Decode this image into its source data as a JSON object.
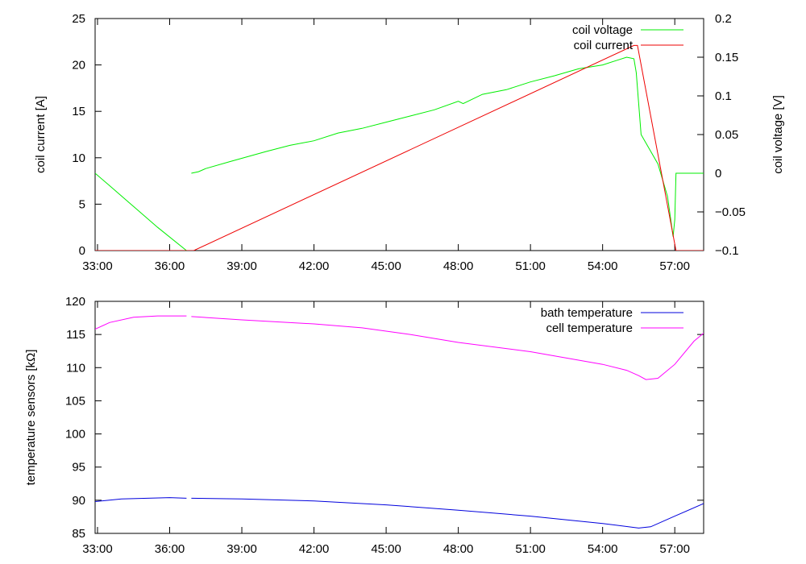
{
  "chart_data": [
    {
      "type": "line",
      "x_tick_labels": [
        "33:00",
        "36:00",
        "39:00",
        "42:00",
        "45:00",
        "48:00",
        "51:00",
        "54:00",
        "57:00"
      ],
      "x_tick_minutes": [
        33,
        36,
        39,
        42,
        45,
        48,
        51,
        54,
        57
      ],
      "xlim_minutes": [
        32.9,
        58.2
      ],
      "ylabel": "coil current [A]",
      "ylim": [
        0,
        25
      ],
      "y_ticks": [
        0,
        5,
        10,
        15,
        20,
        25
      ],
      "y2label": "coil voltage [V]",
      "y2lim": [
        -0.1,
        0.2
      ],
      "y2_ticks": [
        -0.1,
        -0.05,
        0,
        0.05,
        0.1,
        0.15,
        0.2
      ],
      "y2_tick_labels": [
        "-0.1",
        "-0.05",
        "0",
        "0.05",
        "0.1",
        "0.15",
        "0.2"
      ],
      "legend_position": "top-right",
      "series": [
        {
          "name": "coil voltage",
          "color": "#00ee00",
          "axis": "y2",
          "segments": [
            [
              [
                32.9,
                0.0
              ],
              [
                33.5,
                -0.016
              ],
              [
                34.5,
                -0.043
              ],
              [
                35.5,
                -0.07
              ],
              [
                36.7,
                -0.1
              ]
            ],
            [
              [
                36.9,
                0.0
              ],
              [
                37.2,
                0.002
              ],
              [
                37.5,
                0.006
              ],
              [
                38.5,
                0.015
              ],
              [
                40.0,
                0.028
              ],
              [
                41.0,
                0.036
              ],
              [
                42.0,
                0.042
              ],
              [
                43.0,
                0.052
              ],
              [
                44.0,
                0.058
              ],
              [
                45.0,
                0.066
              ],
              [
                46.0,
                0.074
              ],
              [
                47.0,
                0.082
              ],
              [
                48.0,
                0.093
              ],
              [
                48.2,
                0.09
              ],
              [
                49.0,
                0.102
              ],
              [
                50.0,
                0.108
              ],
              [
                51.0,
                0.118
              ],
              [
                52.0,
                0.126
              ],
              [
                53.0,
                0.135
              ],
              [
                54.0,
                0.14
              ],
              [
                54.6,
                0.146
              ],
              [
                55.0,
                0.15
              ],
              [
                55.3,
                0.148
              ],
              [
                55.4,
                0.13
              ],
              [
                55.6,
                0.05
              ],
              [
                56.3,
                0.012
              ],
              [
                56.7,
                -0.03
              ],
              [
                56.93,
                -0.082
              ],
              [
                57.0,
                -0.06
              ],
              [
                57.05,
                0.0
              ],
              [
                58.2,
                0.0
              ]
            ]
          ]
        },
        {
          "name": "coil current",
          "color": "#ee0000",
          "axis": "y",
          "segments": [
            [
              [
                32.9,
                0.0
              ],
              [
                37.0,
                0.0
              ],
              [
                55.3,
                22.1
              ],
              [
                55.45,
                22.1
              ],
              [
                57.05,
                0.0
              ],
              [
                58.2,
                0.0
              ]
            ]
          ]
        }
      ]
    },
    {
      "type": "line",
      "x_tick_labels": [
        "33:00",
        "36:00",
        "39:00",
        "42:00",
        "45:00",
        "48:00",
        "51:00",
        "54:00",
        "57:00"
      ],
      "x_tick_minutes": [
        33,
        36,
        39,
        42,
        45,
        48,
        51,
        54,
        57
      ],
      "xlim_minutes": [
        32.9,
        58.2
      ],
      "ylabel": "temperature sensors [kΩ]",
      "ylim": [
        85,
        120
      ],
      "y_ticks": [
        85,
        90,
        95,
        100,
        105,
        110,
        115,
        120
      ],
      "legend_position": "top-right",
      "series": [
        {
          "name": "bath temperature",
          "color": "#0000dd",
          "segments": [
            [
              [
                32.9,
                89.8
              ],
              [
                34.0,
                90.2
              ],
              [
                36.0,
                90.4
              ],
              [
                36.7,
                90.3
              ]
            ],
            [
              [
                36.9,
                90.3
              ],
              [
                39.0,
                90.2
              ],
              [
                42.0,
                89.9
              ],
              [
                45.0,
                89.3
              ],
              [
                48.0,
                88.5
              ],
              [
                51.0,
                87.6
              ],
              [
                54.0,
                86.5
              ],
              [
                55.5,
                85.8
              ],
              [
                56.0,
                86.0
              ],
              [
                57.0,
                87.6
              ],
              [
                58.2,
                89.5
              ]
            ]
          ]
        },
        {
          "name": "cell temperature",
          "color": "#ff00ff",
          "segments": [
            [
              [
                32.9,
                115.8
              ],
              [
                33.5,
                116.8
              ],
              [
                34.5,
                117.6
              ],
              [
                35.5,
                117.8
              ],
              [
                36.7,
                117.8
              ]
            ],
            [
              [
                36.9,
                117.7
              ],
              [
                39.0,
                117.2
              ],
              [
                42.0,
                116.6
              ],
              [
                44.0,
                116.0
              ],
              [
                46.0,
                115.0
              ],
              [
                48.0,
                113.8
              ],
              [
                51.0,
                112.4
              ],
              [
                54.0,
                110.5
              ],
              [
                55.0,
                109.6
              ],
              [
                55.5,
                108.8
              ],
              [
                55.8,
                108.2
              ],
              [
                56.3,
                108.4
              ],
              [
                57.0,
                110.5
              ],
              [
                57.8,
                114.0
              ],
              [
                58.2,
                115.2
              ]
            ]
          ]
        }
      ]
    }
  ]
}
